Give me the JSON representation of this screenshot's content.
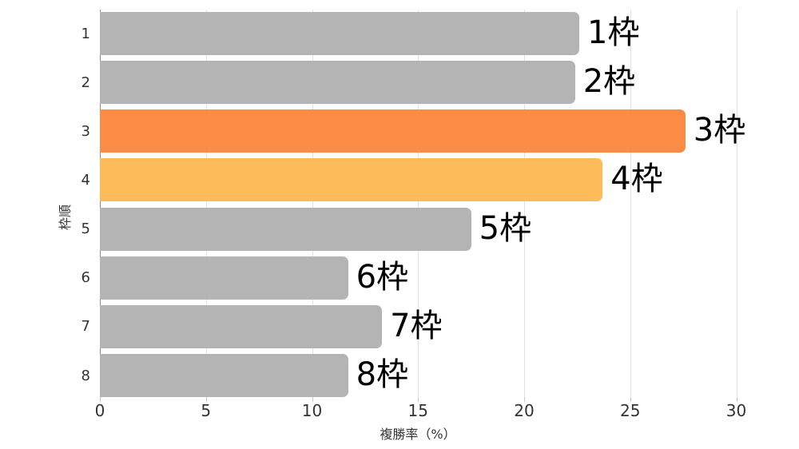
{
  "chart_data": {
    "type": "bar",
    "orientation": "horizontal",
    "title": "",
    "xlabel": "複勝率（%）",
    "ylabel": "枠順",
    "categories": [
      "1",
      "2",
      "3",
      "4",
      "5",
      "6",
      "7",
      "8"
    ],
    "values": [
      22.6,
      22.4,
      27.6,
      23.7,
      17.5,
      11.7,
      13.3,
      11.7
    ],
    "bar_labels": [
      "1枠",
      "2枠",
      "3枠",
      "4枠",
      "5枠",
      "6枠",
      "7枠",
      "8枠"
    ],
    "bar_colors": [
      "#b4b4b4",
      "#b4b4b4",
      "#fa8c45",
      "#fdbc59",
      "#b4b4b4",
      "#b4b4b4",
      "#b4b4b4",
      "#b4b4b4"
    ],
    "colors": {
      "default_bar": "#b4b4b4",
      "highlight_primary": "#fa8c45",
      "highlight_secondary": "#fdbc59",
      "gridline": "#e2e2e2",
      "axis_line": "#8a8a8a",
      "tick_text": "#333333",
      "bar_label_text": "#000000"
    },
    "xlim": [
      0,
      30
    ],
    "xticks": [
      0,
      5,
      10,
      15,
      20,
      25,
      30
    ],
    "grid": true,
    "legend": false
  }
}
